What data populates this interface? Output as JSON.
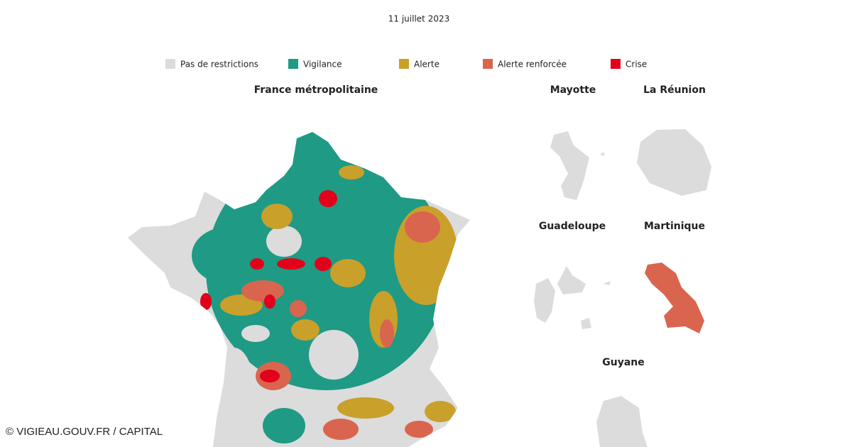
{
  "header": {
    "date": "11 juillet 2023"
  },
  "legend": [
    {
      "label": "Pas de restrictions",
      "color": "#dcdcdc"
    },
    {
      "label": "Vigilance",
      "color": "#1f9a84"
    },
    {
      "label": "Alerte",
      "color": "#c9a02a"
    },
    {
      "label": "Alerte renforcée",
      "color": "#d9654f"
    },
    {
      "label": "Crise",
      "color": "#e2001a"
    }
  ],
  "maps": {
    "metropole": "France métropolitaine",
    "mayotte": "Mayotte",
    "reunion": "La Réunion",
    "guadeloupe": "Guadeloupe",
    "martinique": "Martinique",
    "guyane": "Guyane"
  },
  "credit": "© VIGIEAU.GOUV.FR / CAPITAL"
}
